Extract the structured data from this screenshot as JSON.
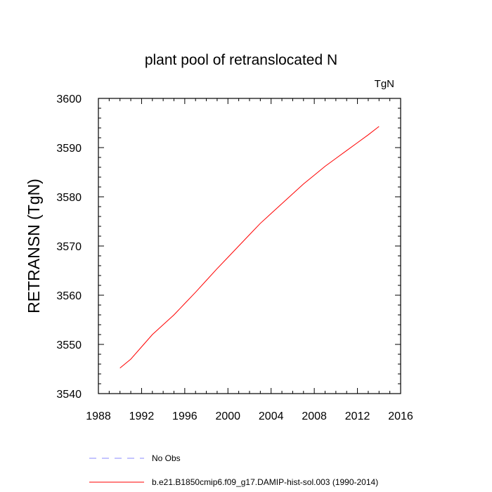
{
  "chart_data": {
    "type": "line",
    "title": "plant pool of retranslocated N",
    "units_label": "TgN",
    "ylabel": "RETRANSN  (TgN)",
    "xlabel": "",
    "xlim": [
      1988,
      2016
    ],
    "ylim": [
      3540,
      3600
    ],
    "x_ticks": [
      1988,
      1992,
      1996,
      2000,
      2004,
      2008,
      2012,
      2016
    ],
    "y_ticks": [
      3540,
      3550,
      3560,
      3570,
      3580,
      3590,
      3600
    ],
    "grid": false,
    "legend_position": "bottom-left",
    "series": [
      {
        "name": "No Obs",
        "color": "#8a8aff",
        "style": "dashed",
        "x": [],
        "y": []
      },
      {
        "name": "b.e21.B1850cmip6.f09_g17.DAMIP-hist-sol.003 (1990-2014)",
        "color": "#ff0000",
        "style": "solid",
        "x": [
          1990,
          1991,
          1992,
          1993,
          1994,
          1995,
          1996,
          1997,
          1998,
          1999,
          2000,
          2001,
          2002,
          2003,
          2004,
          2005,
          2006,
          2007,
          2008,
          2009,
          2010,
          2011,
          2012,
          2013,
          2014
        ],
        "y": [
          3545.2,
          3547.0,
          3549.5,
          3552.0,
          3554.0,
          3556.0,
          3558.3,
          3560.6,
          3563.0,
          3565.4,
          3567.7,
          3570.0,
          3572.3,
          3574.6,
          3576.6,
          3578.6,
          3580.6,
          3582.6,
          3584.4,
          3586.2,
          3587.8,
          3589.4,
          3591.0,
          3592.6,
          3594.3
        ]
      }
    ]
  }
}
